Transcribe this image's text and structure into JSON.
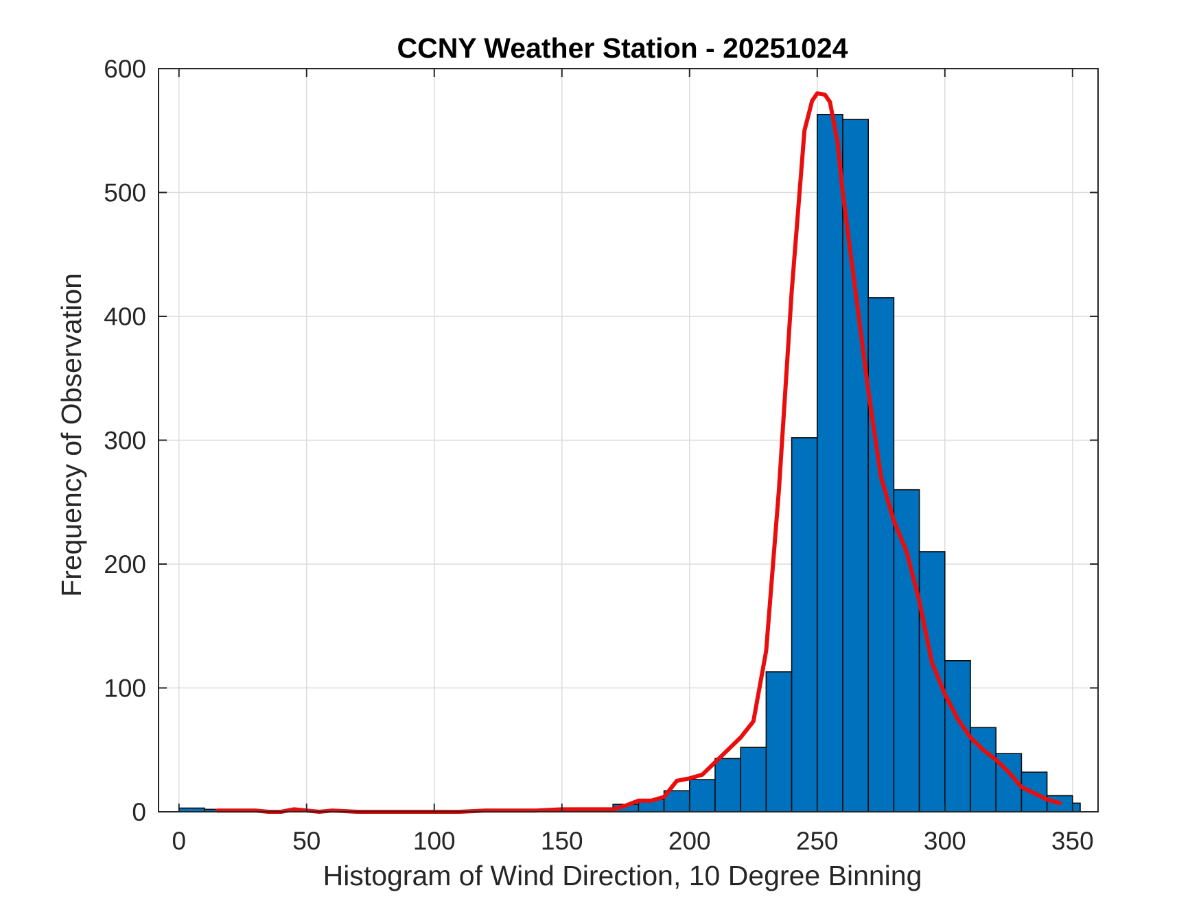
{
  "chart_data": {
    "type": "bar",
    "title": "CCNY Weather Station - 20251024",
    "xlabel": "Histogram of Wind Direction, 10 Degree Binning",
    "ylabel": "Frequency of Observation",
    "xlim": [
      -8,
      360
    ],
    "ylim": [
      0,
      600
    ],
    "x_ticks": [
      0,
      50,
      100,
      150,
      200,
      250,
      300,
      350
    ],
    "y_ticks": [
      0,
      100,
      200,
      300,
      400,
      500,
      600
    ],
    "grid": true,
    "bin_width": 10,
    "bins": {
      "start": [
        0,
        10,
        20,
        30,
        40,
        50,
        60,
        70,
        80,
        90,
        100,
        110,
        120,
        130,
        140,
        150,
        160,
        170,
        180,
        190,
        200,
        210,
        220,
        230,
        240,
        250,
        260,
        270,
        280,
        290,
        300,
        310,
        320,
        330,
        340,
        350
      ],
      "end": [
        10,
        20,
        30,
        40,
        50,
        60,
        70,
        80,
        90,
        100,
        110,
        120,
        130,
        140,
        150,
        160,
        170,
        180,
        190,
        200,
        210,
        220,
        230,
        240,
        250,
        260,
        270,
        280,
        290,
        300,
        310,
        320,
        330,
        340,
        350,
        353
      ],
      "counts": [
        3,
        2,
        1,
        1,
        1,
        1,
        0,
        0,
        0,
        0,
        0,
        1,
        1,
        1,
        1,
        1,
        1,
        6,
        10,
        17,
        26,
        43,
        52,
        113,
        302,
        563,
        559,
        415,
        260,
        210,
        122,
        68,
        47,
        32,
        13,
        7
      ]
    },
    "series": [
      {
        "type": "line",
        "x": [
          15,
          20,
          25,
          30,
          35,
          40,
          45,
          50,
          55,
          60,
          70,
          80,
          90,
          100,
          110,
          120,
          130,
          140,
          150,
          160,
          165,
          170,
          175,
          180,
          185,
          190,
          195,
          200,
          205,
          210,
          215,
          220,
          225,
          230,
          235,
          240,
          245,
          248,
          250,
          253,
          255,
          258,
          260,
          265,
          270,
          275,
          280,
          285,
          290,
          295,
          300,
          305,
          310,
          315,
          320,
          325,
          330,
          335,
          340,
          345
        ],
        "y": [
          1,
          1,
          1,
          1,
          0,
          0,
          2,
          1,
          0,
          1,
          0,
          0,
          0,
          0,
          0,
          1,
          1,
          1,
          2,
          2,
          2,
          2,
          5,
          9,
          9,
          12,
          25,
          27,
          30,
          40,
          50,
          60,
          73,
          130,
          260,
          420,
          550,
          574,
          580,
          579,
          573,
          540,
          500,
          420,
          340,
          270,
          235,
          210,
          170,
          120,
          95,
          75,
          60,
          50,
          42,
          32,
          20,
          15,
          10,
          7
        ]
      }
    ],
    "colors": {
      "bar_fill": "#0072BD",
      "bar_edge": "#0A0A0A",
      "line": "#E80E0E",
      "grid": "#DCDCDC",
      "axis": "#262626"
    }
  }
}
